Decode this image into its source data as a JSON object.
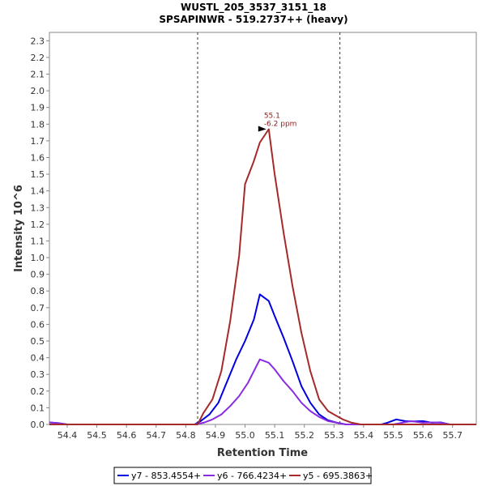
{
  "chart_data": {
    "type": "line",
    "title": "WUSTL_205_3537_3151_18",
    "subtitle": "SPSAPINWR - 519.2737++ (heavy)",
    "xlabel": "Retention Time",
    "ylabel": "Intensity 10^6",
    "xlim": [
      54.34,
      55.78
    ],
    "ylim": [
      0.0,
      2.35
    ],
    "x_ticks": [
      "54.4",
      "54.5",
      "54.6",
      "54.7",
      "54.8",
      "54.9",
      "55.0",
      "55.1",
      "55.2",
      "55.3",
      "55.4",
      "55.5",
      "55.6",
      "55.7"
    ],
    "y_ticks": [
      "0.0",
      "0.1",
      "0.2",
      "0.3",
      "0.4",
      "0.5",
      "0.6",
      "0.7",
      "0.8",
      "0.9",
      "1.0",
      "1.1",
      "1.2",
      "1.3",
      "1.4",
      "1.5",
      "1.6",
      "1.7",
      "1.8",
      "1.9",
      "2.0",
      "2.1",
      "2.2",
      "2.3"
    ],
    "boundaries": [
      54.84,
      55.32
    ],
    "peak_annotation": {
      "x": 55.08,
      "y": 1.77,
      "line1": "55.1",
      "line2": "-6.2 ppm"
    },
    "series": [
      {
        "name": "y7 - 853.4554+",
        "color": "#0000e0",
        "points": [
          [
            54.34,
            0.012
          ],
          [
            54.37,
            0.008
          ],
          [
            54.4,
            0.0
          ],
          [
            54.83,
            0.0
          ],
          [
            54.85,
            0.02
          ],
          [
            54.88,
            0.06
          ],
          [
            54.91,
            0.13
          ],
          [
            54.94,
            0.26
          ],
          [
            54.97,
            0.39
          ],
          [
            55.0,
            0.5
          ],
          [
            55.03,
            0.63
          ],
          [
            55.05,
            0.78
          ],
          [
            55.08,
            0.74
          ],
          [
            55.1,
            0.65
          ],
          [
            55.13,
            0.52
          ],
          [
            55.16,
            0.38
          ],
          [
            55.19,
            0.23
          ],
          [
            55.22,
            0.13
          ],
          [
            55.25,
            0.06
          ],
          [
            55.28,
            0.025
          ],
          [
            55.31,
            0.01
          ],
          [
            55.34,
            0.0
          ],
          [
            55.46,
            0.0
          ],
          [
            55.48,
            0.01
          ],
          [
            55.51,
            0.03
          ],
          [
            55.54,
            0.02
          ],
          [
            55.57,
            0.018
          ],
          [
            55.6,
            0.02
          ],
          [
            55.63,
            0.01
          ],
          [
            55.66,
            0.012
          ],
          [
            55.69,
            0.0
          ],
          [
            55.78,
            0.0
          ]
        ]
      },
      {
        "name": "y6 - 766.4234+",
        "color": "#8a2be2",
        "points": [
          [
            54.34,
            0.012
          ],
          [
            54.37,
            0.008
          ],
          [
            54.4,
            0.0
          ],
          [
            54.83,
            0.0
          ],
          [
            54.86,
            0.01
          ],
          [
            54.89,
            0.03
          ],
          [
            54.92,
            0.06
          ],
          [
            54.95,
            0.11
          ],
          [
            54.98,
            0.17
          ],
          [
            55.01,
            0.25
          ],
          [
            55.03,
            0.32
          ],
          [
            55.05,
            0.39
          ],
          [
            55.08,
            0.37
          ],
          [
            55.1,
            0.33
          ],
          [
            55.13,
            0.26
          ],
          [
            55.16,
            0.2
          ],
          [
            55.19,
            0.13
          ],
          [
            55.22,
            0.08
          ],
          [
            55.25,
            0.045
          ],
          [
            55.28,
            0.02
          ],
          [
            55.31,
            0.01
          ],
          [
            55.34,
            0.0
          ],
          [
            55.5,
            0.0
          ],
          [
            55.53,
            0.01
          ],
          [
            55.56,
            0.02
          ],
          [
            55.6,
            0.01
          ],
          [
            55.63,
            0.012
          ],
          [
            55.66,
            0.01
          ],
          [
            55.69,
            0.0
          ],
          [
            55.78,
            0.0
          ]
        ]
      },
      {
        "name": "y5 - 695.3863+",
        "color": "#a52a2a",
        "points": [
          [
            54.34,
            0.0
          ],
          [
            54.84,
            0.0
          ],
          [
            54.86,
            0.07
          ],
          [
            54.89,
            0.15
          ],
          [
            54.92,
            0.32
          ],
          [
            54.95,
            0.62
          ],
          [
            54.98,
            1.01
          ],
          [
            55.0,
            1.44
          ],
          [
            55.03,
            1.58
          ],
          [
            55.05,
            1.69
          ],
          [
            55.08,
            1.77
          ],
          [
            55.1,
            1.5
          ],
          [
            55.13,
            1.15
          ],
          [
            55.16,
            0.83
          ],
          [
            55.19,
            0.55
          ],
          [
            55.22,
            0.32
          ],
          [
            55.25,
            0.15
          ],
          [
            55.28,
            0.08
          ],
          [
            55.31,
            0.05
          ],
          [
            55.33,
            0.03
          ],
          [
            55.36,
            0.01
          ],
          [
            55.39,
            0.0
          ],
          [
            55.78,
            0.0
          ]
        ]
      }
    ],
    "legend_position": "bottom-center"
  }
}
